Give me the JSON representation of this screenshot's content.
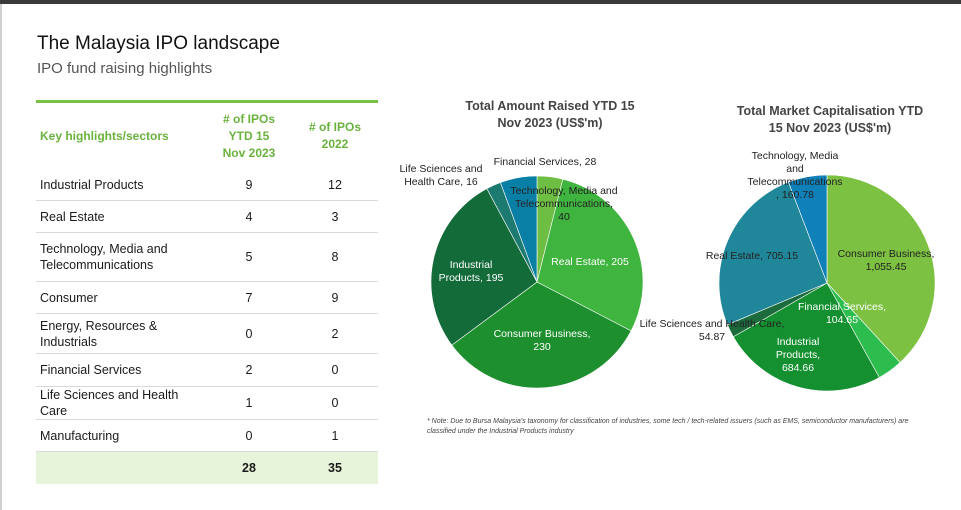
{
  "header": {
    "title": "The Malaysia IPO landscape",
    "subtitle": "IPO fund raising highlights"
  },
  "table": {
    "headers": [
      "Key highlights/sectors",
      "# of IPOs YTD 15 Nov 2023",
      "# of IPOs 2022"
    ],
    "rows": [
      {
        "sector": "Industrial Products",
        "ytd2023": "9",
        "y2022": "12"
      },
      {
        "sector": "Real Estate",
        "ytd2023": "4",
        "y2022": "3"
      },
      {
        "sector": "Technology, Media and Telecommunications",
        "ytd2023": "5",
        "y2022": "8"
      },
      {
        "sector": "Consumer",
        "ytd2023": "7",
        "y2022": "9"
      },
      {
        "sector": "Energy, Resources & Industrials",
        "ytd2023": "0",
        "y2022": "2"
      },
      {
        "sector": "Financial Services",
        "ytd2023": "2",
        "y2022": "0"
      },
      {
        "sector": "Life Sciences and Health Care",
        "ytd2023": "1",
        "y2022": "0"
      },
      {
        "sector": "Manufacturing",
        "ytd2023": "0",
        "y2022": "1"
      }
    ],
    "total": {
      "ytd2023": "28",
      "y2022": "35"
    }
  },
  "chart_data": [
    {
      "type": "pie",
      "title": "Total Amount Raised YTD 15 Nov 2023 (US$'m)",
      "slices": [
        {
          "name": "Financial Services",
          "value": 28,
          "label": "Financial Services, 28",
          "color": "#6fbe44"
        },
        {
          "name": "Real Estate",
          "value": 205,
          "label": "Real Estate, 205",
          "color": "#3fb43f"
        },
        {
          "name": "Consumer Business",
          "value": 230,
          "label": "Consumer Business, 230",
          "color": "#1e8f2e"
        },
        {
          "name": "Industrial Products",
          "value": 195,
          "label": "Industrial Products, 195",
          "color": "#146b3a"
        },
        {
          "name": "Life Sciences and Health Care",
          "value": 16,
          "label": "Life Sciences and Health Care, 16",
          "color": "#1d7a70"
        },
        {
          "name": "Technology, Media and Telecommunications",
          "value": 40,
          "label": "Technology, Media and Telecommunications, 40",
          "color": "#0a7fa5"
        }
      ]
    },
    {
      "type": "pie",
      "title": "Total Market Capitalisation YTD 15 Nov 2023 (US$'m)",
      "slices": [
        {
          "name": "Consumer Business",
          "value": 1055.45,
          "label": "Consumer Business, 1,055.45",
          "color": "#7dc142"
        },
        {
          "name": "Financial Services",
          "value": 104.65,
          "label": "Financial Services, 104.65",
          "color": "#2dbd4e"
        },
        {
          "name": "Industrial Products",
          "value": 684.66,
          "label": "Industrial Products, 684.66",
          "color": "#159030"
        },
        {
          "name": "Life Sciences and Health Care",
          "value": 54.87,
          "label": "Life Sciences and Health Care, 54.87",
          "color": "#1c6b3c"
        },
        {
          "name": "Real Estate",
          "value": 705.15,
          "label": "Real Estate, 705.15",
          "color": "#20879a"
        },
        {
          "name": "Technology, Media and Telecommunications",
          "value": 160.78,
          "label": "Technology, Media and Telecommunications, 160.78",
          "color": "#0f80b8"
        }
      ]
    }
  ],
  "note": "* Note: Due to Bursa Malaysia's taxonomy for classification of industries, some tech / tech-related issuers (such as EMS, semiconductor manufacturers) are classified under the Industrial Products industry"
}
